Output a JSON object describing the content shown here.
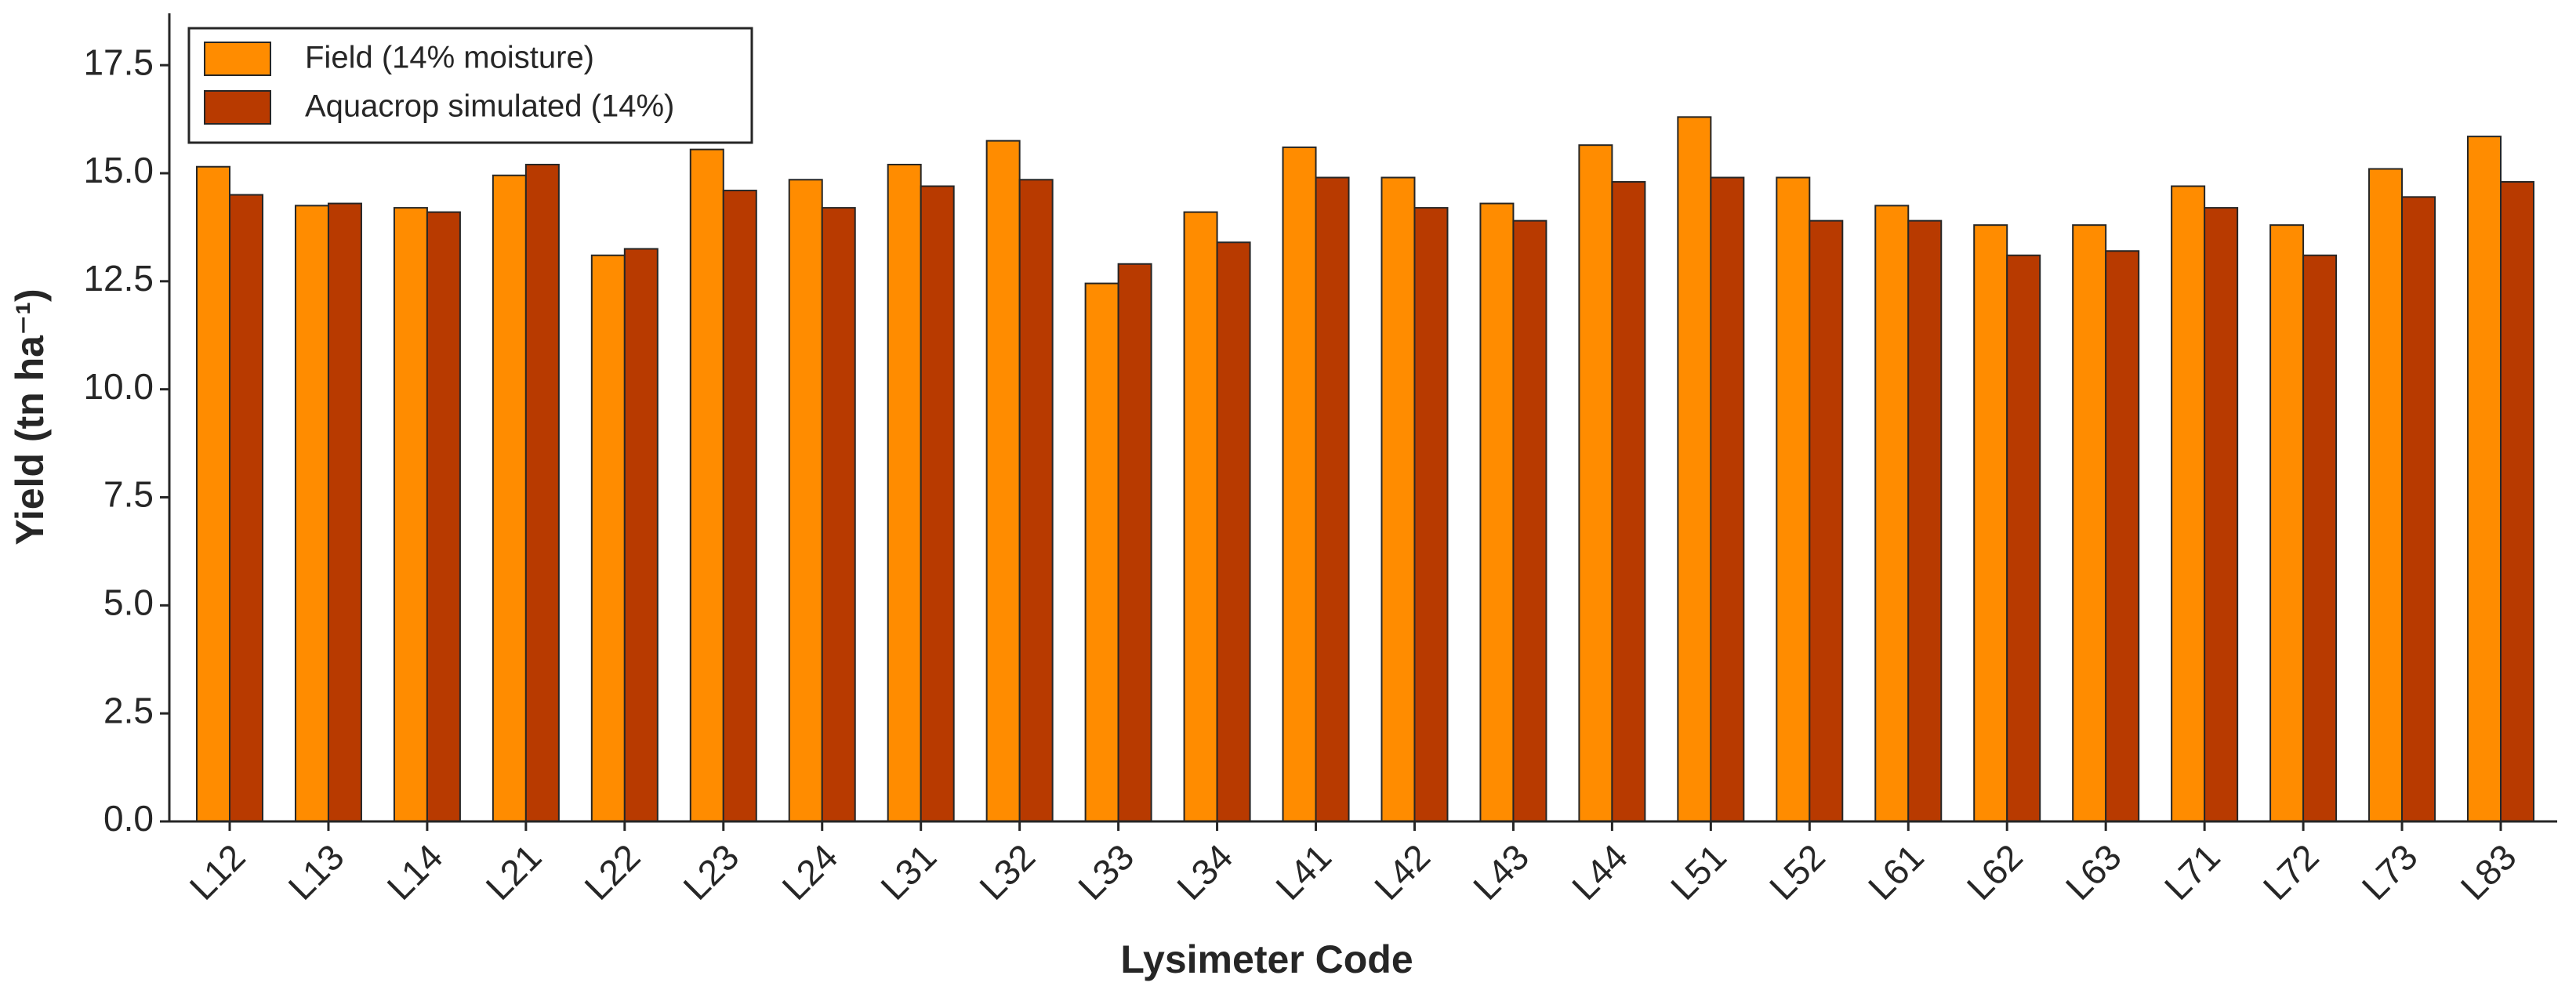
{
  "chart_data": {
    "type": "bar",
    "xlabel": "Lysimeter Code",
    "ylabel": "Yield (tn ha⁻¹)",
    "categories": [
      "L12",
      "L13",
      "L14",
      "L21",
      "L22",
      "L23",
      "L24",
      "L31",
      "L32",
      "L33",
      "L34",
      "L41",
      "L42",
      "L43",
      "L44",
      "L51",
      "L52",
      "L61",
      "L62",
      "L63",
      "L71",
      "L72",
      "L73",
      "L83"
    ],
    "series": [
      {
        "name": "Field (14% moisture)",
        "color": "#ff8c00",
        "values": [
          15.15,
          14.25,
          14.2,
          14.95,
          13.1,
          15.55,
          14.85,
          15.2,
          15.75,
          12.45,
          14.1,
          15.6,
          14.9,
          14.3,
          15.65,
          16.3,
          14.9,
          14.25,
          13.8,
          13.8,
          14.7,
          13.8,
          15.1,
          15.85
        ]
      },
      {
        "name": "Aquacrop simulated (14%)",
        "color": "#b83a00",
        "values": [
          14.5,
          14.3,
          14.1,
          15.2,
          13.25,
          14.6,
          14.2,
          14.7,
          14.85,
          12.9,
          13.4,
          14.9,
          14.2,
          13.9,
          14.8,
          14.9,
          13.9,
          13.9,
          13.1,
          13.2,
          14.2,
          13.1,
          14.45,
          14.8
        ]
      }
    ],
    "ylim": [
      0,
      18.7
    ],
    "yticks": [
      {
        "value": 0,
        "label": "0.0"
      },
      {
        "value": 2.5,
        "label": "2.5"
      },
      {
        "value": 5,
        "label": "5.0"
      },
      {
        "value": 7.5,
        "label": "7.5"
      },
      {
        "value": 10,
        "label": "10.0"
      },
      {
        "value": 12.5,
        "label": "12.5"
      },
      {
        "value": 15,
        "label": "15.0"
      },
      {
        "value": 17.5,
        "label": "17.5"
      }
    ],
    "legend": "upper left"
  }
}
